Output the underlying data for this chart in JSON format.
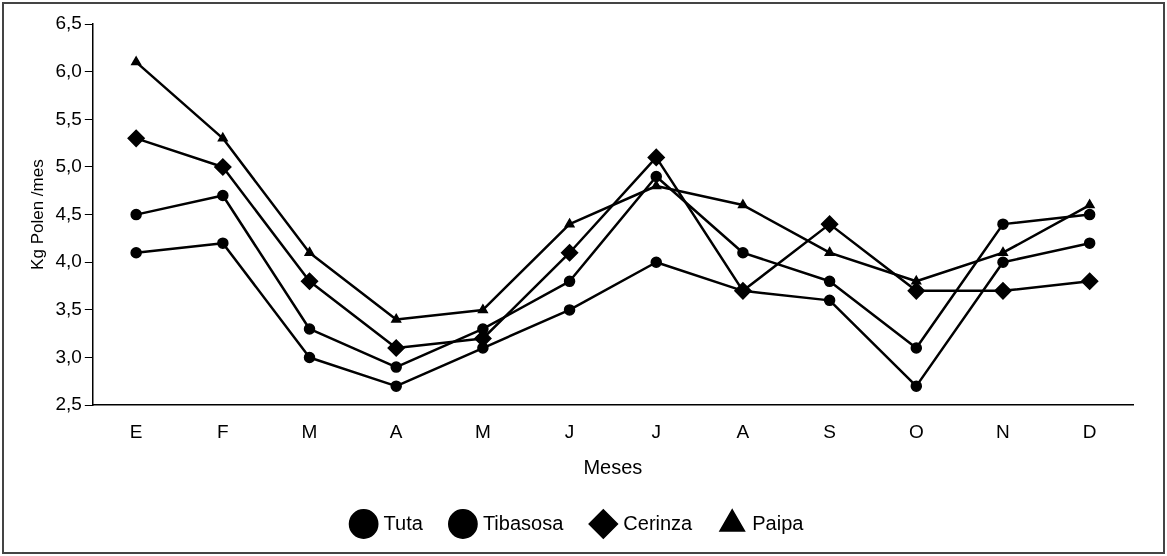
{
  "chart_data": {
    "type": "line",
    "xlabel": "Meses",
    "ylabel": "Kg Polen /mes",
    "categories": [
      "E",
      "F",
      "M",
      "A",
      "M",
      "J",
      "J",
      "A",
      "S",
      "O",
      "N",
      "D"
    ],
    "series": [
      {
        "name": "Tuta",
        "color": "#000000",
        "marker": "circle",
        "values": [
          4.1,
          4.2,
          3.0,
          2.7,
          3.1,
          3.5,
          4.0,
          3.7,
          3.6,
          2.7,
          4.0,
          4.2
        ]
      },
      {
        "name": "Tibasosa",
        "color": "#000000",
        "marker": "circle",
        "values": [
          4.5,
          4.7,
          3.3,
          2.9,
          3.3,
          3.8,
          4.9,
          4.1,
          3.8,
          3.1,
          4.4,
          4.5
        ]
      },
      {
        "name": "Cerinza",
        "color": "#000000",
        "marker": "diamond",
        "values": [
          5.3,
          5.0,
          3.8,
          3.1,
          3.2,
          4.1,
          5.1,
          3.7,
          4.4,
          3.7,
          3.7,
          3.8
        ]
      },
      {
        "name": "Paipa",
        "color": "#000000",
        "marker": "triangle",
        "values": [
          6.1,
          5.3,
          4.1,
          3.4,
          3.5,
          4.4,
          4.8,
          4.6,
          4.1,
          3.8,
          4.1,
          4.6
        ]
      }
    ],
    "ylim": [
      2.5,
      6.5
    ],
    "yticks": [
      {
        "value": 2.5,
        "label": "2,5"
      },
      {
        "value": 3,
        "label": "3,0"
      },
      {
        "value": 3.5,
        "label": "3,5"
      },
      {
        "value": 4,
        "label": "4,0"
      },
      {
        "value": 4.5,
        "label": "4,5"
      },
      {
        "value": 5,
        "label": "5,0"
      },
      {
        "value": 5.5,
        "label": "5,5"
      },
      {
        "value": 6,
        "label": "6,0"
      },
      {
        "value": 6.5,
        "label": "6,5"
      }
    ],
    "grid": false,
    "legend": "bottom",
    "line_style": "solid"
  }
}
